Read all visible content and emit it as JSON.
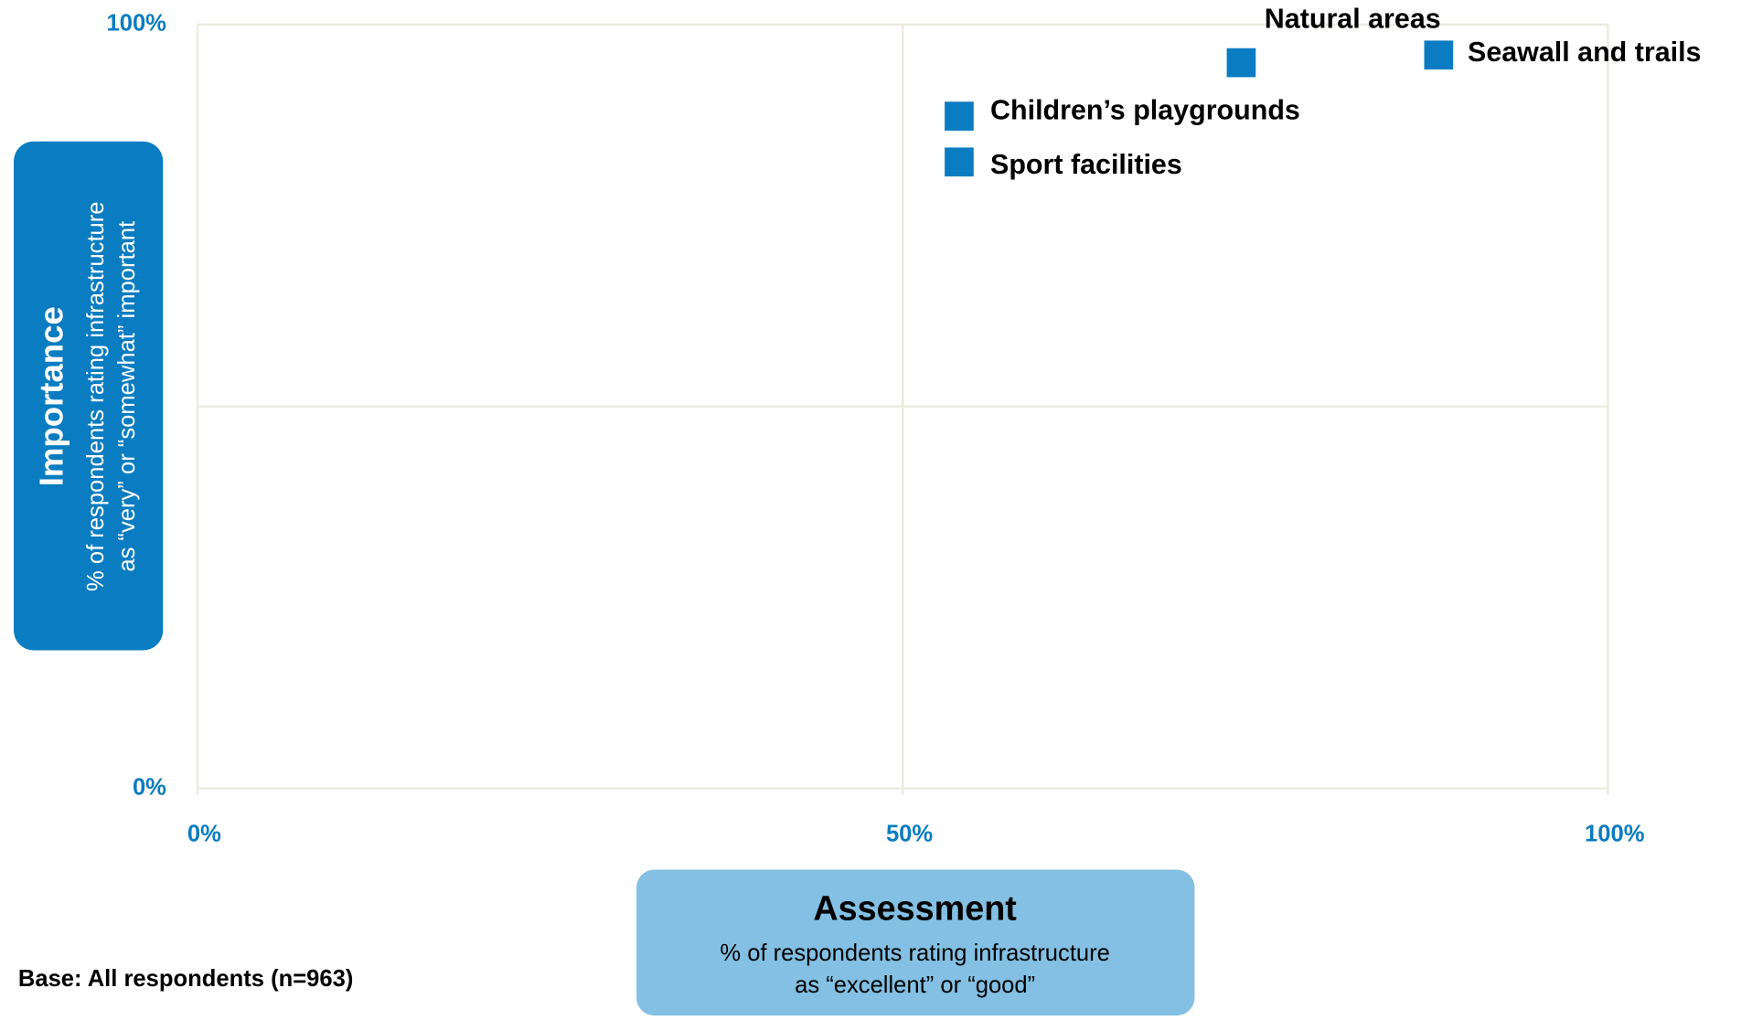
{
  "chart_data": {
    "type": "scatter",
    "labels": [
      "Natural areas",
      "Seawall and trails",
      "Children’s playgrounds",
      "Sport facilities"
    ],
    "x": [
      74,
      88,
      54,
      54
    ],
    "values": [
      95,
      96,
      88,
      82
    ],
    "color": "#0a7cc1",
    "xlim": [
      0,
      100
    ],
    "ylim": [
      0,
      100
    ],
    "xticks": [
      {
        "value": 0,
        "label": "0%"
      },
      {
        "value": 50,
        "label": "50%"
      },
      {
        "value": 100,
        "label": "100%"
      }
    ],
    "yticks": [
      {
        "value": 0,
        "label": "0%"
      },
      {
        "value": 100,
        "label": "100%"
      }
    ],
    "ygrid": [
      0,
      50,
      100
    ],
    "grid": true,
    "y_axis_title": "Importance",
    "y_axis_subtitle": [
      "% of respondents rating infrastructure",
      "as “very” or “somewhat” important"
    ],
    "x_axis_title": "Assessment",
    "x_axis_subtitle": [
      "% of respondents rating infrastructure",
      "as “excellent” or “good”"
    ],
    "footnote": "Base: All respondents (n=963)"
  }
}
